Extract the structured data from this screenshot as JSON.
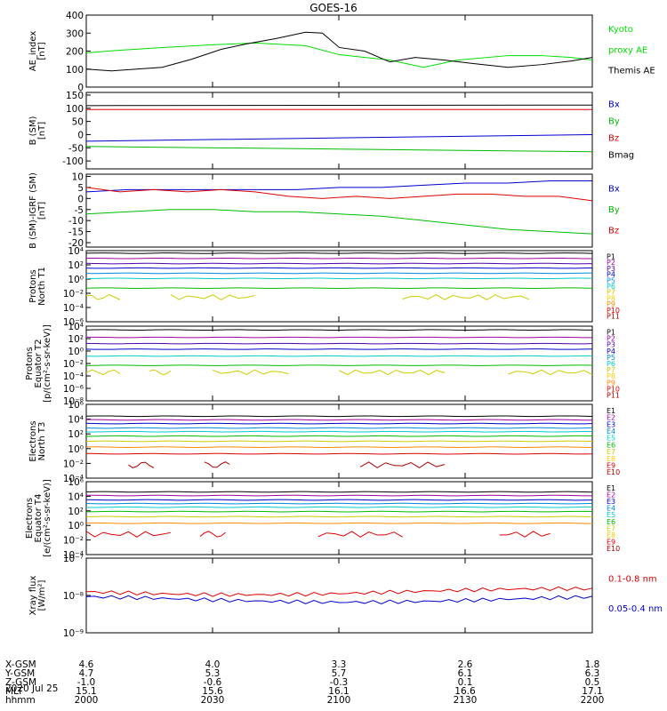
{
  "title": "GOES-16",
  "date_label": "2020 Jul 25",
  "footer": {
    "row_labels": [
      "X-GSM",
      "Y-GSM",
      "Z-GSM",
      "MLT",
      "hhmm"
    ],
    "columns": [
      {
        "values": [
          "4.6",
          "4.7",
          "-1.0",
          "15.1",
          "2000"
        ]
      },
      {
        "values": [
          "4.0",
          "5.3",
          "-0.6",
          "15.6",
          "2030"
        ]
      },
      {
        "values": [
          "3.3",
          "5.7",
          "-0.3",
          "16.1",
          "2100"
        ]
      },
      {
        "values": [
          "2.6",
          "6.1",
          "0.1",
          "16.6",
          "2130"
        ]
      },
      {
        "values": [
          "1.8",
          "6.3",
          "0.5",
          "17.1",
          "2200"
        ]
      }
    ]
  },
  "chart_data": [
    {
      "type": "line",
      "name": "ae-index",
      "ylabel": "AE_index",
      "yunits": "[nT]",
      "scale": "linear",
      "ylim": [
        0,
        400
      ],
      "ticks": [
        "400",
        "300",
        "200",
        "100",
        "0"
      ],
      "x_range_minutes": [
        0,
        120
      ],
      "series": [
        {
          "name": "Kyoto proxy AE",
          "color": "#00dd00",
          "x": [
            0,
            8,
            18,
            30,
            40,
            52,
            60,
            72,
            80,
            88,
            100,
            108,
            115,
            120
          ],
          "values": [
            190,
            205,
            220,
            235,
            245,
            230,
            180,
            150,
            110,
            150,
            175,
            175,
            165,
            150
          ]
        },
        {
          "name": "Themis AE",
          "color": "#000000",
          "x": [
            0,
            6,
            18,
            25,
            32,
            38,
            45,
            52,
            56,
            60,
            66,
            72,
            78,
            85,
            92,
            100,
            108,
            115,
            120
          ],
          "values": [
            100,
            90,
            110,
            155,
            210,
            240,
            270,
            305,
            300,
            220,
            200,
            140,
            165,
            150,
            130,
            110,
            125,
            145,
            165
          ]
        }
      ],
      "legend": [
        {
          "text": "Kyoto",
          "color": "#00dd00"
        },
        {
          "text": "proxy AE",
          "color": "#00dd00"
        },
        {
          "text": "Themis AE",
          "color": "#000000"
        }
      ]
    },
    {
      "type": "line",
      "name": "b-sm",
      "ylabel": "B (SM)",
      "yunits": "[nT]",
      "scale": "linear",
      "ylim": [
        -130,
        160
      ],
      "ticks": [
        "150",
        "100",
        "50",
        "0",
        "-50",
        "-100"
      ],
      "series": [
        {
          "name": "Bx",
          "color": "#0000cc",
          "x": [
            0,
            120
          ],
          "values": [
            -25,
            0
          ]
        },
        {
          "name": "By",
          "color": "#00bb00",
          "x": [
            0,
            120
          ],
          "values": [
            -45,
            -65
          ]
        },
        {
          "name": "Bz",
          "color": "#dd0000",
          "x": [
            0,
            120
          ],
          "values": [
            95,
            95
          ]
        },
        {
          "name": "Bmag",
          "color": "#000000",
          "x": [
            0,
            120
          ],
          "values": [
            110,
            112
          ]
        }
      ],
      "legend": [
        {
          "text": "Bx",
          "color": "#0000cc"
        },
        {
          "text": "By",
          "color": "#00bb00"
        },
        {
          "text": "Bz",
          "color": "#dd0000"
        },
        {
          "text": "Bmag",
          "color": "#000000"
        }
      ]
    },
    {
      "type": "line",
      "name": "b-sm-igrf",
      "ylabel": "B (SM)-IGRF (SM)",
      "yunits": "[nT]",
      "scale": "linear",
      "ylim": [
        -22,
        11
      ],
      "ticks": [
        "10",
        "5",
        "0",
        "-5",
        "-10",
        "-15",
        "-20"
      ],
      "series": [
        {
          "name": "Bx",
          "color": "#0000cc",
          "x": [
            0,
            10,
            20,
            30,
            40,
            50,
            60,
            70,
            80,
            90,
            100,
            110,
            120
          ],
          "values": [
            3,
            4,
            4,
            4,
            4,
            4,
            5,
            5,
            6,
            7,
            7,
            8,
            8
          ]
        },
        {
          "name": "By",
          "color": "#00bb00",
          "x": [
            0,
            10,
            20,
            30,
            40,
            50,
            60,
            70,
            80,
            90,
            100,
            110,
            120
          ],
          "values": [
            -7,
            -6,
            -5,
            -5,
            -6,
            -6,
            -7,
            -8,
            -10,
            -12,
            -14,
            -15,
            -16
          ]
        },
        {
          "name": "Bz",
          "color": "#dd0000",
          "x": [
            0,
            8,
            16,
            24,
            32,
            40,
            48,
            56,
            64,
            72,
            80,
            88,
            96,
            104,
            112,
            120
          ],
          "values": [
            5,
            3,
            4,
            3,
            4,
            3,
            1,
            0,
            1,
            0,
            1,
            2,
            2,
            1,
            1,
            -1
          ]
        }
      ],
      "legend": [
        {
          "text": "Bx",
          "color": "#0000cc"
        },
        {
          "text": "By",
          "color": "#00bb00"
        },
        {
          "text": "Bz",
          "color": "#dd0000"
        }
      ]
    },
    {
      "type": "line",
      "name": "protons-north-t1",
      "ylabel": "Protons",
      "ylabel2": "North T1",
      "scale": "log",
      "ylim": [
        -7,
        4
      ],
      "ticks": [
        "10⁴",
        "10²",
        "10⁰",
        "10⁻²",
        "10⁻⁴",
        "10⁻⁶"
      ],
      "series": [
        {
          "name": "P1",
          "color": "#000000",
          "log_values": [
            3.6
          ]
        },
        {
          "name": "P2",
          "color": "#a000a0",
          "log_values": [
            2.8
          ]
        },
        {
          "name": "P3",
          "color": "#5000b0",
          "log_values": [
            2.0
          ]
        },
        {
          "name": "P4",
          "color": "#0000cc",
          "log_values": [
            1.3
          ]
        },
        {
          "name": "P5",
          "color": "#0088dd",
          "log_values": [
            0.5
          ]
        },
        {
          "name": "P6",
          "color": "#00cccc",
          "log_values": [
            -0.3
          ]
        },
        {
          "name": "P7",
          "color": "#00bb00",
          "log_values": [
            -1.8
          ]
        },
        {
          "name": "P8",
          "color": "#cccc00",
          "log_values": [
            -3.2
          ],
          "segments": [
            [
              0,
              8
            ],
            [
              20,
              40
            ],
            [
              75,
              105
            ]
          ]
        }
      ],
      "legend": [
        {
          "text": "P1",
          "color": "#000000"
        },
        {
          "text": "P2",
          "color": "#a000a0"
        },
        {
          "text": "P3",
          "color": "#5000b0"
        },
        {
          "text": "P4",
          "color": "#0000cc"
        },
        {
          "text": "P5",
          "color": "#0088dd"
        },
        {
          "text": "P6",
          "color": "#00cccc"
        },
        {
          "text": "P7",
          "color": "#cccc00"
        },
        {
          "text": "P8",
          "color": "#ffcc00"
        },
        {
          "text": "P9",
          "color": "#ff8800"
        },
        {
          "text": "P10",
          "color": "#dd0000"
        },
        {
          "text": "P11",
          "color": "#aa0000"
        }
      ]
    },
    {
      "type": "line",
      "name": "protons-equator-t2",
      "ylabel": "Protons",
      "ylabel2": "Equator T2",
      "yunits": "[p/(cm²-s-sr-keV)]",
      "scale": "log",
      "ylim": [
        -8,
        4
      ],
      "ticks": [
        "10⁴",
        "10²",
        "10⁰",
        "10⁻²",
        "10⁻⁴",
        "10⁻⁶",
        "10⁻⁸"
      ],
      "series": [
        {
          "name": "P1",
          "color": "#000000",
          "log_values": [
            3.4
          ]
        },
        {
          "name": "P2",
          "color": "#a000a0",
          "log_values": [
            2.2
          ]
        },
        {
          "name": "P3",
          "color": "#5000b0",
          "log_values": [
            1.2
          ]
        },
        {
          "name": "P4",
          "color": "#0000cc",
          "log_values": [
            0.3
          ]
        },
        {
          "name": "P5",
          "color": "#00cccc",
          "log_values": [
            -0.8
          ]
        },
        {
          "name": "P6",
          "color": "#00bb00",
          "log_values": [
            -2.3
          ]
        },
        {
          "name": "P7",
          "color": "#cccc00",
          "log_values": [
            -3.4
          ],
          "segments": [
            [
              0,
              8
            ],
            [
              15,
              20
            ],
            [
              30,
              48
            ],
            [
              60,
              85
            ],
            [
              100,
              120
            ]
          ]
        }
      ],
      "legend": [
        {
          "text": "P1",
          "color": "#000000"
        },
        {
          "text": "P2",
          "color": "#a000a0"
        },
        {
          "text": "P3",
          "color": "#5000b0"
        },
        {
          "text": "P4",
          "color": "#0000cc"
        },
        {
          "text": "P5",
          "color": "#0088dd"
        },
        {
          "text": "P6",
          "color": "#00cccc"
        },
        {
          "text": "P7",
          "color": "#cccc00"
        },
        {
          "text": "P8",
          "color": "#ffcc00"
        },
        {
          "text": "P9",
          "color": "#ff8800"
        },
        {
          "text": "P10",
          "color": "#dd0000"
        },
        {
          "text": "P11",
          "color": "#aa0000"
        }
      ]
    },
    {
      "type": "line",
      "name": "electrons-north-t3",
      "ylabel": "Electrons",
      "ylabel2": "North T3",
      "scale": "log",
      "ylim": [
        -4,
        6
      ],
      "ticks": [
        "10⁶",
        "10⁴",
        "10²",
        "10⁰",
        "10⁻²",
        "10⁻⁴"
      ],
      "series": [
        {
          "name": "E1",
          "color": "#000000",
          "log_values": [
            4.4
          ]
        },
        {
          "name": "E2",
          "color": "#a000a0",
          "log_values": [
            3.9
          ]
        },
        {
          "name": "E3",
          "color": "#0000cc",
          "log_values": [
            3.4
          ]
        },
        {
          "name": "E4",
          "color": "#0088dd",
          "log_values": [
            2.8
          ]
        },
        {
          "name": "E5",
          "color": "#00cccc",
          "log_values": [
            2.3
          ]
        },
        {
          "name": "E6",
          "color": "#00bb00",
          "log_values": [
            1.7
          ]
        },
        {
          "name": "E7",
          "color": "#cccc00",
          "log_values": [
            1.0
          ]
        },
        {
          "name": "E8",
          "color": "#ff8800",
          "log_values": [
            0.2
          ]
        },
        {
          "name": "E9",
          "color": "#dd0000",
          "log_values": [
            -0.7
          ]
        },
        {
          "name": "E10",
          "color": "#aa0000",
          "log_values": [
            -2.2
          ],
          "segments": [
            [
              10,
              16
            ],
            [
              28,
              34
            ],
            [
              65,
              85
            ]
          ]
        }
      ],
      "legend": [
        {
          "text": "E1",
          "color": "#000000"
        },
        {
          "text": "E2",
          "color": "#a000a0"
        },
        {
          "text": "E3",
          "color": "#0000cc"
        },
        {
          "text": "E4",
          "color": "#0088dd"
        },
        {
          "text": "E5",
          "color": "#00cccc"
        },
        {
          "text": "E6",
          "color": "#00bb00"
        },
        {
          "text": "E7",
          "color": "#cccc00"
        },
        {
          "text": "E8",
          "color": "#ffcc00"
        },
        {
          "text": "E9",
          "color": "#dd0000"
        },
        {
          "text": "E10",
          "color": "#aa0000"
        }
      ]
    },
    {
      "type": "line",
      "name": "electrons-equator-t4",
      "ylabel": "Electrons",
      "ylabel2": "Equator T4",
      "yunits": "[e/(cm²-s-sr-keV)]",
      "scale": "log",
      "ylim": [
        -4,
        6
      ],
      "ticks": [
        "10⁶",
        "10⁴",
        "10²",
        "10⁰",
        "10⁻²",
        "10⁻⁴"
      ],
      "series": [
        {
          "name": "E1",
          "color": "#000000",
          "log_values": [
            4.6
          ]
        },
        {
          "name": "E2",
          "color": "#a000a0",
          "log_values": [
            4.1
          ]
        },
        {
          "name": "E3",
          "color": "#0000cc",
          "log_values": [
            3.5
          ]
        },
        {
          "name": "E4",
          "color": "#0088dd",
          "log_values": [
            3.0
          ]
        },
        {
          "name": "E5",
          "color": "#00cccc",
          "log_values": [
            2.5
          ]
        },
        {
          "name": "E6",
          "color": "#00bb00",
          "log_values": [
            1.9
          ]
        },
        {
          "name": "E7",
          "color": "#cccc00",
          "log_values": [
            1.2
          ]
        },
        {
          "name": "E8",
          "color": "#ff8800",
          "log_values": [
            0.3
          ]
        },
        {
          "name": "E9",
          "color": "#dd0000",
          "log_values": [
            -1.2
          ],
          "segments": [
            [
              0,
              20
            ],
            [
              27,
              33
            ],
            [
              55,
              75
            ],
            [
              98,
              110
            ]
          ]
        }
      ],
      "legend": [
        {
          "text": "E1",
          "color": "#000000"
        },
        {
          "text": "E2",
          "color": "#a000a0"
        },
        {
          "text": "E3",
          "color": "#0000cc"
        },
        {
          "text": "E4",
          "color": "#0088dd"
        },
        {
          "text": "E5",
          "color": "#00cccc"
        },
        {
          "text": "E6",
          "color": "#00bb00"
        },
        {
          "text": "E7",
          "color": "#cccc00"
        },
        {
          "text": "E8",
          "color": "#ffcc00"
        },
        {
          "text": "E9",
          "color": "#dd0000"
        },
        {
          "text": "E10",
          "color": "#aa0000"
        }
      ]
    },
    {
      "type": "line",
      "name": "xray-flux",
      "ylabel": "Xray flux",
      "yunits": "[W/m²]",
      "scale": "log",
      "ylim": [
        -9,
        -7
      ],
      "ticks": [
        "10⁻⁷",
        "10⁻⁸",
        "10⁻⁹"
      ],
      "series": [
        {
          "name": "0.1-0.8 nm",
          "color": "#dd0000",
          "log_values": [
            -7.9
          ]
        },
        {
          "name": "0.05-0.4 nm",
          "color": "#0000cc",
          "log_values": [
            -8.1
          ]
        }
      ],
      "legend": [
        {
          "text": "0.1-0.8 nm",
          "color": "#dd0000"
        },
        {
          "text": "0.05-0.4 nm",
          "color": "#0000cc"
        }
      ]
    }
  ]
}
